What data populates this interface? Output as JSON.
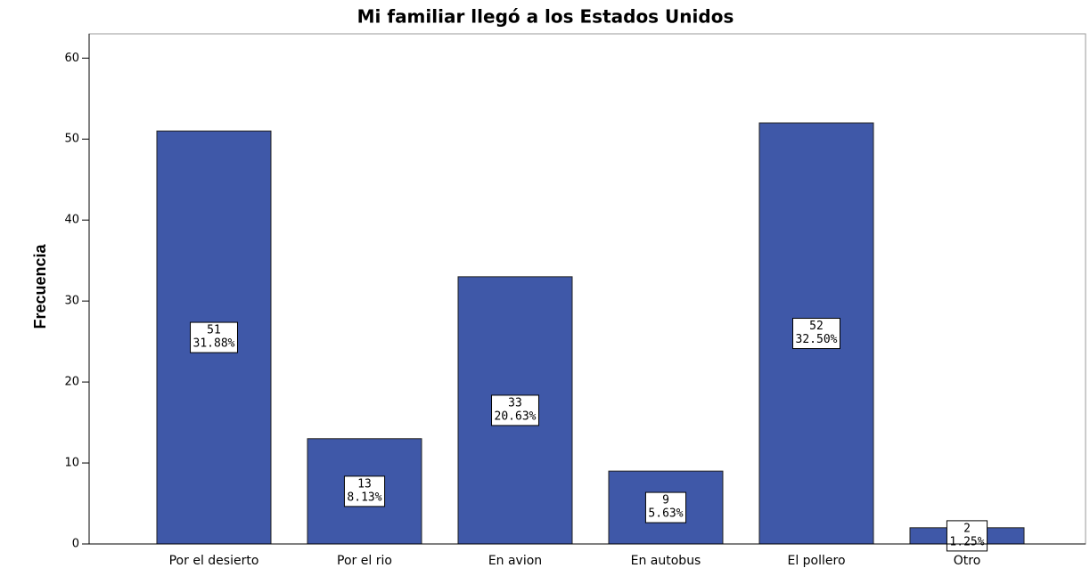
{
  "chart_data": {
    "type": "bar",
    "title": "Mi familiar llegó a los Estados Unidos",
    "y_label": "Frecuencia",
    "categories": [
      "Por el desierto",
      "Por el rio",
      "En avion",
      "En autobus",
      "El pollero",
      "Otro"
    ],
    "values": [
      51,
      13,
      33,
      9,
      52,
      2
    ],
    "percent_labels": [
      "31.88%",
      "8.13%",
      "20.63%",
      "5.63%",
      "32.50%",
      "1.25%"
    ],
    "color": "#3f58a8",
    "ylim": [
      0,
      63
    ],
    "yticks": [
      0,
      10,
      20,
      30,
      40,
      50,
      60
    ],
    "grid": false
  }
}
